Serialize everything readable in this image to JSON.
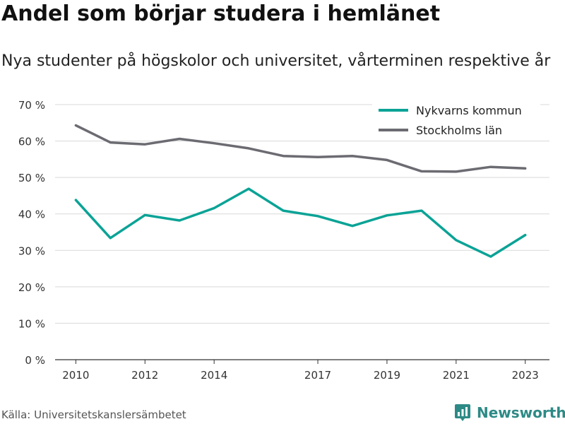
{
  "title": "Andel som börjar studera i hemlänet",
  "subtitle": "Nya studenter på högskolor och universitet, vårterminen respektive år",
  "source": "Källa: Universitetskanslersämbetet",
  "brand": {
    "name": "Newsworthy",
    "logo_icon": "bar-chart-icon"
  },
  "colors": {
    "nykvarn": "#0aa396",
    "stockholm": "#6b6b72",
    "grid": "#d9d9d9",
    "axis": "#333333"
  },
  "chart_data": {
    "type": "line",
    "x": [
      2010,
      2011,
      2012,
      2013,
      2014,
      2015,
      2016,
      2017,
      2018,
      2019,
      2020,
      2021,
      2022,
      2023
    ],
    "x_ticks": [
      2010,
      2012,
      2014,
      2017,
      2019,
      2021,
      2023
    ],
    "xlim": [
      2009.4,
      2023.7
    ],
    "ylim": [
      0,
      70
    ],
    "y_ticks": [
      0,
      10,
      20,
      30,
      40,
      50,
      60,
      70
    ],
    "y_tick_labels": [
      "0 %",
      "10 %",
      "20 %",
      "30 %",
      "40 %",
      "50 %",
      "60 %",
      "70 %"
    ],
    "grid": true,
    "legend_position": "top-right",
    "series": [
      {
        "name": "Nykvarns kommun",
        "color": "#0aa396",
        "values": [
          43.8,
          33.4,
          39.7,
          38.2,
          41.6,
          46.9,
          40.9,
          39.4,
          36.7,
          39.6,
          40.9,
          32.8,
          28.3,
          34.2
        ]
      },
      {
        "name": "Stockholms län",
        "color": "#6b6b72",
        "values": [
          64.3,
          59.6,
          59.1,
          60.6,
          59.4,
          58.0,
          55.9,
          55.6,
          55.9,
          54.8,
          51.7,
          51.6,
          52.9,
          52.5
        ]
      }
    ]
  }
}
